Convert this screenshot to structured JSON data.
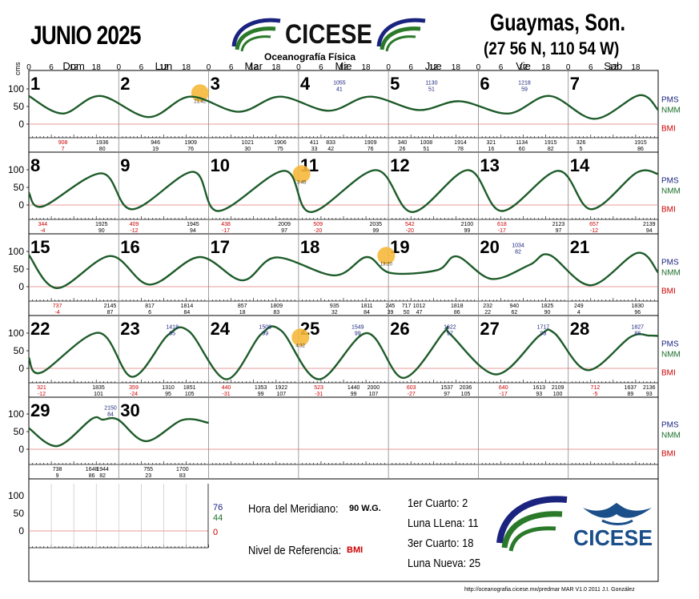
{
  "header": {
    "title": "JUNIO 2025",
    "organization": "CICESE",
    "department": "Oceanografía Física",
    "station": "Guaymas, Son.",
    "coordinates": "(27 56 N, 110 54 W)"
  },
  "chart_data": {
    "type": "line",
    "axis_unit": "cms",
    "y_ticks": [
      100,
      50,
      0
    ],
    "ylim": [
      -40,
      140
    ],
    "hour_ticks": [
      "0",
      "6",
      "12",
      "18"
    ],
    "day_names": [
      "Dom",
      "Lun",
      "Mar",
      "Mie",
      "Jue",
      "Vie",
      "Sab"
    ],
    "right_labels": [
      "PMS",
      "NMM",
      "BMI"
    ],
    "right_colors": [
      "#1a237e",
      "#1b6e2a",
      "#cc0000"
    ],
    "line_color": "#1e5c2a",
    "rows": [
      {
        "days": [
          1,
          2,
          3,
          4,
          5,
          6,
          7
        ],
        "curve": [
          [
            0,
            80
          ],
          [
            9,
            30
          ],
          [
            19,
            80
          ],
          [
            32,
            20
          ],
          [
            43,
            78
          ],
          [
            56,
            35
          ],
          [
            67,
            78
          ],
          [
            80,
            38
          ],
          [
            91,
            78
          ],
          [
            104,
            40
          ],
          [
            115,
            65
          ],
          [
            128,
            30
          ],
          [
            139,
            80
          ],
          [
            151,
            15
          ],
          [
            163,
            82
          ],
          [
            168,
            40
          ]
        ],
        "extremes": [
          {
            "t": "908",
            "v": "7",
            "x": 9.1,
            "low": true
          },
          {
            "t": "1936",
            "v": "80",
            "x": 19.6
          },
          {
            "t": "946",
            "v": "19",
            "x": 33.8
          },
          {
            "t": "1909",
            "v": "76",
            "x": 43.2
          },
          {
            "t": "1021",
            "v": "30",
            "x": 58.4
          },
          {
            "t": "1906",
            "v": "75",
            "x": 67.1
          },
          {
            "t": "411",
            "v": "33",
            "x": 76.2
          },
          {
            "t": "833",
            "v": "42",
            "x": 80.6
          },
          {
            "t": "1909",
            "v": "76",
            "x": 91.2
          },
          {
            "t": "340",
            "v": "26",
            "x": 99.7
          },
          {
            "t": "1008",
            "v": "51",
            "x": 106.1
          },
          {
            "t": "1914",
            "v": "78",
            "x": 115.2
          },
          {
            "t": "321",
            "v": "16",
            "x": 123.4
          },
          {
            "t": "1134",
            "v": "60",
            "x": 131.6
          },
          {
            "t": "1915",
            "v": "82",
            "x": 139.3
          },
          {
            "t": "326",
            "v": "5",
            "x": 147.4
          },
          {
            "t": "1915",
            "v": "86",
            "x": 163.3
          }
        ],
        "inline_labels": [
          {
            "t": "1055",
            "v": "41",
            "x": 82.9
          },
          {
            "t": "1130",
            "v": "51",
            "x": 107.5
          },
          {
            "t": "1218",
            "v": "59",
            "x": 132.3
          }
        ],
        "moon": {
          "x": 45.7,
          "time": "21:42"
        }
      },
      {
        "days": [
          8,
          9,
          10,
          11,
          12,
          13,
          14
        ],
        "curve": [
          [
            0,
            35
          ],
          [
            3.7,
            -4
          ],
          [
            19.4,
            90
          ],
          [
            27.6,
            -12
          ],
          [
            43.8,
            94
          ],
          [
            50.6,
            -17
          ],
          [
            68.2,
            97
          ],
          [
            75.3,
            -20
          ],
          [
            92.6,
            99
          ],
          [
            102.4,
            -20
          ],
          [
            117.2,
            99
          ],
          [
            126.3,
            -17
          ],
          [
            141.3,
            97
          ],
          [
            150.1,
            -12
          ],
          [
            162.3,
            92
          ],
          [
            168,
            88
          ]
        ],
        "extremes": [
          {
            "t": "344",
            "v": "-4",
            "x": 3.7,
            "low": true
          },
          {
            "t": "1925",
            "v": "90",
            "x": 19.4
          },
          {
            "t": "409",
            "v": "-12",
            "x": 28.1,
            "low": true
          },
          {
            "t": "1945",
            "v": "94",
            "x": 43.8
          },
          {
            "t": "438",
            "v": "-17",
            "x": 52.6,
            "low": true
          },
          {
            "t": "2009",
            "v": "97",
            "x": 68.2
          },
          {
            "t": "509",
            "v": "-20",
            "x": 77.2,
            "low": true
          },
          {
            "t": "2035",
            "v": "99",
            "x": 92.6
          },
          {
            "t": "542",
            "v": "-20",
            "x": 101.7,
            "low": true
          },
          {
            "t": "2100",
            "v": "99",
            "x": 117.0
          },
          {
            "t": "618",
            "v": "-17",
            "x": 126.3,
            "low": true
          },
          {
            "t": "2123",
            "v": "97",
            "x": 141.4
          },
          {
            "t": "657",
            "v": "-12",
            "x": 150.9,
            "low": true
          },
          {
            "t": "2139",
            "v": "94",
            "x": 165.6
          }
        ],
        "inline_labels": [],
        "moon": {
          "x": 72.8,
          "time": "3:45"
        }
      },
      {
        "days": [
          15,
          16,
          17,
          18,
          19,
          20,
          21
        ],
        "curve": [
          [
            0,
            90
          ],
          [
            7.6,
            -4
          ],
          [
            21.7,
            87
          ],
          [
            32.3,
            6
          ],
          [
            45.5,
            84
          ],
          [
            57,
            18
          ],
          [
            66,
            83
          ],
          [
            81.6,
            32
          ],
          [
            90.2,
            84
          ],
          [
            96.5,
            39
          ],
          [
            109,
            47
          ],
          [
            114.3,
            86
          ],
          [
            123.5,
            22
          ],
          [
            133.7,
            62
          ],
          [
            139,
            90
          ],
          [
            150,
            4
          ],
          [
            162.5,
            96
          ],
          [
            168,
            40
          ]
        ],
        "extremes": [
          {
            "t": "737",
            "v": "-4",
            "x": 7.6,
            "low": true
          },
          {
            "t": "2145",
            "v": "87",
            "x": 21.7
          },
          {
            "t": "817",
            "v": "6",
            "x": 32.3
          },
          {
            "t": "1814",
            "v": "84",
            "x": 42.2
          },
          {
            "t": "857",
            "v": "18",
            "x": 57.0
          },
          {
            "t": "1809",
            "v": "83",
            "x": 66.1
          },
          {
            "t": "935",
            "v": "32",
            "x": 81.6
          },
          {
            "t": "1811",
            "v": "84",
            "x": 90.2
          },
          {
            "t": "245",
            "v": "39",
            "x": 96.5
          },
          {
            "t": "717",
            "v": "50",
            "x": 100.8
          },
          {
            "t": "1012",
            "v": "47",
            "x": 104.2
          },
          {
            "t": "1818",
            "v": "86",
            "x": 114.3
          },
          {
            "t": "232",
            "v": "22",
            "x": 122.5
          },
          {
            "t": "940",
            "v": "62",
            "x": 129.6
          },
          {
            "t": "1825",
            "v": "90",
            "x": 138.4
          },
          {
            "t": "249",
            "v": "4",
            "x": 146.8
          },
          {
            "t": "1830",
            "v": "96",
            "x": 162.5
          }
        ],
        "inline_labels": [
          {
            "t": "1034",
            "v": "82",
            "x": 130.6
          }
        ],
        "moon": {
          "x": 95.4,
          "time": "13:20"
        }
      },
      {
        "days": [
          22,
          23,
          24,
          25,
          26,
          27,
          28
        ],
        "curve": [
          [
            0,
            30
          ],
          [
            3.3,
            -12
          ],
          [
            18.6,
            101
          ],
          [
            27.6,
            -24
          ],
          [
            37.2,
            95
          ],
          [
            42.8,
            105
          ],
          [
            52.7,
            -31
          ],
          [
            62,
            97
          ],
          [
            67.4,
            107
          ],
          [
            77.4,
            -31
          ],
          [
            90.2,
            100
          ],
          [
            100,
            -27
          ],
          [
            111,
            105
          ],
          [
            112.5,
            97
          ],
          [
            124.7,
            -17
          ],
          [
            136.3,
            93
          ],
          [
            140.3,
            100
          ],
          [
            149.2,
            -5
          ],
          [
            160.6,
            89
          ],
          [
            165.6,
            93
          ],
          [
            168,
            92
          ]
        ],
        "extremes": [
          {
            "t": "321",
            "v": "-12",
            "x": 3.4,
            "low": true
          },
          {
            "t": "1835",
            "v": "101",
            "x": 18.6
          },
          {
            "t": "359",
            "v": "-24",
            "x": 28.0,
            "low": true
          },
          {
            "t": "1310",
            "v": "95",
            "x": 37.2
          },
          {
            "t": "1851",
            "v": "105",
            "x": 42.9
          },
          {
            "t": "440",
            "v": "-31",
            "x": 52.7,
            "low": true
          },
          {
            "t": "1353",
            "v": "99",
            "x": 61.9
          },
          {
            "t": "1922",
            "v": "107",
            "x": 67.4
          },
          {
            "t": "523",
            "v": "-31",
            "x": 77.4,
            "low": true
          },
          {
            "t": "1440",
            "v": "99",
            "x": 86.7
          },
          {
            "t": "2000",
            "v": "107",
            "x": 92.0
          },
          {
            "t": "603",
            "v": "-27",
            "x": 102.1,
            "low": true
          },
          {
            "t": "1537",
            "v": "97",
            "x": 111.6
          },
          {
            "t": "2036",
            "v": "105",
            "x": 116.6
          },
          {
            "t": "640",
            "v": "-17",
            "x": 126.7,
            "low": true
          },
          {
            "t": "1613",
            "v": "93",
            "x": 136.2
          },
          {
            "t": "2109",
            "v": "100",
            "x": 141.2
          },
          {
            "t": "712",
            "v": "-5",
            "x": 151.2,
            "low": true
          },
          {
            "t": "1637",
            "v": "89",
            "x": 160.6
          },
          {
            "t": "2136",
            "v": "93",
            "x": 165.6
          }
        ],
        "inline_labels": [
          {
            "t": "1418",
            "v": "95",
            "x": 38.3
          },
          {
            "t": "1508",
            "v": "99",
            "x": 63.1
          },
          {
            "t": "1549",
            "v": "99",
            "x": 87.8
          },
          {
            "t": "1622",
            "v": "97",
            "x": 112.4
          },
          {
            "t": "1717",
            "v": "93",
            "x": 137.3
          },
          {
            "t": "1827",
            "v": "88",
            "x": 162.5
          }
        ],
        "moon": {
          "x": 72.5,
          "time": "4:32"
        }
      },
      {
        "days": [
          29,
          30
        ],
        "curve": [
          [
            0,
            60
          ],
          [
            7.6,
            9
          ],
          [
            16.8,
            86
          ],
          [
            19.7,
            84
          ],
          [
            23.8,
            84
          ],
          [
            31.3,
            23
          ],
          [
            41,
            83
          ],
          [
            48,
            75
          ]
        ],
        "extremes": [
          {
            "t": "738",
            "v": "9",
            "x": 7.6
          },
          {
            "t": "1648",
            "v": "86",
            "x": 16.8
          },
          {
            "t": "1944",
            "v": "82",
            "x": 19.7
          },
          {
            "t": "755",
            "v": "23",
            "x": 31.9
          },
          {
            "t": "1700",
            "v": "83",
            "x": 41.0
          }
        ],
        "inline_labels": [
          {
            "t": "2150",
            "v": "84",
            "x": 21.8
          }
        ],
        "moon": null
      }
    ]
  },
  "legend_panel": {
    "level_pms": "76",
    "level_nmm": "44",
    "level_bmi": "0",
    "meridian_label": "Hora del Meridiano:",
    "meridian_value": "90 W.G.",
    "reference_label": "Nivel de Referencia:",
    "reference_value": "BMI",
    "phases": [
      {
        "label": "1er Cuarto:",
        "day": "2"
      },
      {
        "label": "Luna LLena:",
        "day": "11"
      },
      {
        "label": "3er Cuarto:",
        "day": "18"
      },
      {
        "label": "Luna Nueva:",
        "day": "25"
      }
    ]
  },
  "footer": "http://oceanografia.cicese.mx/predmar  MAR V1.0 2011 J.I. González"
}
